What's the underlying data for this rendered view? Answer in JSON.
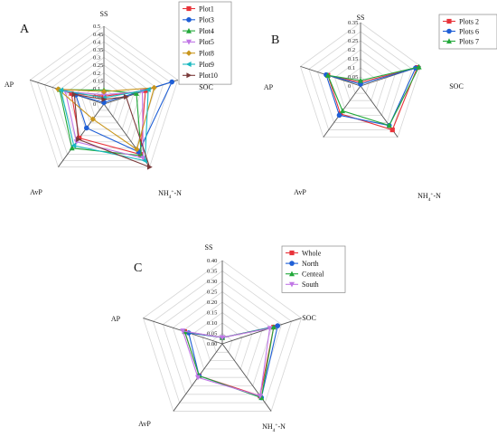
{
  "chart_data": [
    {
      "type": "radar",
      "panel": "A",
      "axes": [
        "SS",
        "SOC",
        "NH4+-N",
        "AvP",
        "AP"
      ],
      "ticks": [
        "0.5",
        "0.45",
        "0.4",
        "0.35",
        "0.3",
        "0.25",
        "0.2",
        "0.15",
        "0.1",
        "0.05",
        "0"
      ],
      "rmax": 0.5,
      "legend_position": "top-right",
      "series": [
        {
          "name": "Plot1",
          "color": "#e8333a",
          "marker": "square",
          "values": [
            0.05,
            0.28,
            0.4,
            0.27,
            0.22
          ]
        },
        {
          "name": "Plot3",
          "color": "#1f5fd6",
          "marker": "circle",
          "values": [
            0.01,
            0.46,
            0.38,
            0.19,
            0.19
          ]
        },
        {
          "name": "Plot4",
          "color": "#22a83a",
          "marker": "triangle-up",
          "values": [
            0.09,
            0.22,
            0.41,
            0.35,
            0.3
          ]
        },
        {
          "name": "Plot5",
          "color": "#c177e6",
          "marker": "triangle-down",
          "values": [
            0.06,
            0.26,
            0.43,
            0.3,
            0.26
          ]
        },
        {
          "name": "Plot8",
          "color": "#c9961d",
          "marker": "diamond",
          "values": [
            0.08,
            0.34,
            0.36,
            0.12,
            0.31
          ]
        },
        {
          "name": "Plot9",
          "color": "#18b8c0",
          "marker": "triangle-left",
          "values": [
            0.04,
            0.3,
            0.45,
            0.33,
            0.29
          ]
        },
        {
          "name": "Plot10",
          "color": "#7a3b3b",
          "marker": "triangle-right",
          "values": [
            0.03,
            0.15,
            0.5,
            0.28,
            0.2
          ]
        }
      ]
    },
    {
      "type": "radar",
      "panel": "B",
      "axes": [
        "SS",
        "SOC",
        "NH4+-N",
        "AvP",
        "AP"
      ],
      "ticks": [
        "0.35",
        "0.3",
        "0.25",
        "0.2",
        "0.15",
        "0.1",
        "0.05",
        "0"
      ],
      "rmax": 0.35,
      "legend_position": "top-right",
      "series": [
        {
          "name": "Plots 2",
          "color": "#e8333a",
          "marker": "square",
          "values": [
            0.02,
            0.33,
            0.3,
            0.19,
            0.19
          ]
        },
        {
          "name": "Plots 6",
          "color": "#1f5fd6",
          "marker": "circle",
          "values": [
            0.01,
            0.32,
            0.27,
            0.2,
            0.2
          ]
        },
        {
          "name": "Plots 7",
          "color": "#22a83a",
          "marker": "triangle-up",
          "values": [
            0.03,
            0.34,
            0.27,
            0.17,
            0.19
          ]
        }
      ]
    },
    {
      "type": "radar",
      "panel": "C",
      "axes": [
        "SS",
        "SOC",
        "NH4+-N",
        "AvP",
        "AP"
      ],
      "ticks": [
        "0.40",
        "0.35",
        "0.30",
        "0.25",
        "0.20",
        "0.15",
        "0.10",
        "0.05",
        "0.00"
      ],
      "rmax": 0.4,
      "legend_position": "top-right",
      "series": [
        {
          "name": "Whole",
          "color": "#e8333a",
          "marker": "square",
          "values": [
            0.03,
            0.26,
            0.31,
            0.19,
            0.19
          ]
        },
        {
          "name": "North",
          "color": "#1f5fd6",
          "marker": "circle",
          "values": [
            0.03,
            0.28,
            0.32,
            0.19,
            0.17
          ]
        },
        {
          "name": "Centeal",
          "color": "#22a83a",
          "marker": "triangle-up",
          "values": [
            0.03,
            0.26,
            0.32,
            0.19,
            0.19
          ]
        },
        {
          "name": "South",
          "color": "#c177e6",
          "marker": "triangle-down",
          "values": [
            0.03,
            0.24,
            0.31,
            0.2,
            0.2
          ]
        }
      ]
    }
  ]
}
